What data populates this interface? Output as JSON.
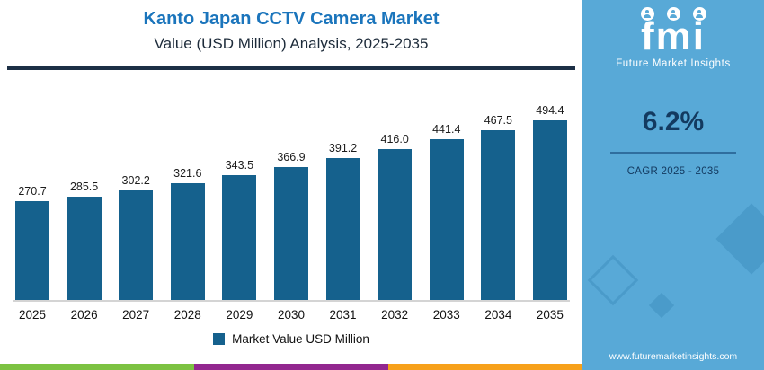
{
  "title": {
    "line1": "Kanto Japan CCTV Camera Market",
    "line2": "Value (USD Million) Analysis, 2025-2035"
  },
  "chart_data": {
    "type": "bar",
    "title": "Kanto Japan CCTV Camera Market Value (USD Million) Analysis, 2025-2035",
    "categories": [
      "2025",
      "2026",
      "2027",
      "2028",
      "2029",
      "2030",
      "2031",
      "2032",
      "2033",
      "2034",
      "2035"
    ],
    "values": [
      270.7,
      285.5,
      302.2,
      321.6,
      343.5,
      366.9,
      391.2,
      416.0,
      441.4,
      467.5,
      494.4
    ],
    "value_labels": [
      "270.7",
      "285.5",
      "302.2",
      "321.6",
      "343.5",
      "366.9",
      "391.2",
      "416.0",
      "441.4",
      "467.5",
      "494.4"
    ],
    "xlabel": "",
    "ylabel": "",
    "ylim": [
      0,
      520
    ],
    "grid": false,
    "legend": "Market Value USD Million",
    "legend_position": "bottom",
    "bar_color": "#15618d"
  },
  "sidebar": {
    "logo": "fmi",
    "logo_caption": "Future Market Insights",
    "cagr_value": "6.2%",
    "cagr_label": "CAGR 2025 - 2035",
    "website": "www.futuremarketinsights.com",
    "background": "#58a9d7"
  },
  "colors": {
    "title_blue": "#1b75bc",
    "subtitle_dark": "#1d2b3a",
    "bar": "#15618d",
    "accent_navy": "#133a60",
    "strip_green": "#7cc242",
    "strip_purple": "#92278f",
    "strip_orange": "#f7a11a"
  }
}
